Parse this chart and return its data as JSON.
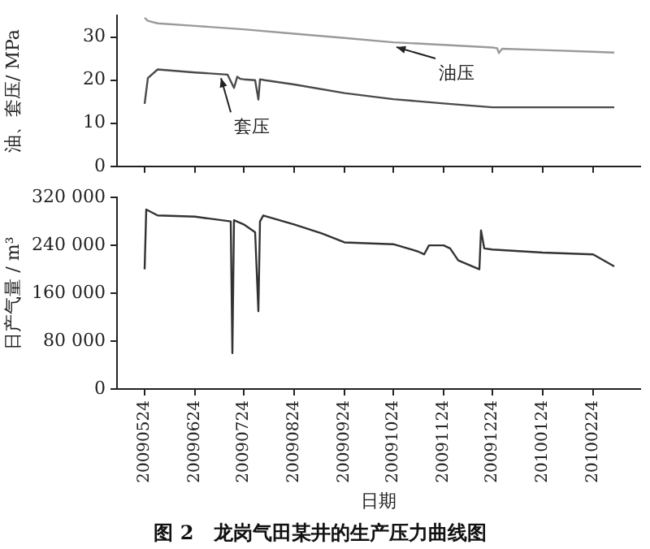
{
  "chart_data": [
    {
      "type": "line",
      "ylabel": "油、套压/ MPa",
      "xlim": [
        "2009-05-07",
        "2010-03-25"
      ],
      "ylim": [
        0,
        35
      ],
      "yticks": [
        0,
        10,
        20,
        30
      ],
      "xticks": [
        {
          "value": "2009-05-24",
          "label": null
        },
        {
          "value": "2009-06-24",
          "label": null
        },
        {
          "value": "2009-07-24",
          "label": null
        },
        {
          "value": "2009-08-24",
          "label": null
        },
        {
          "value": "2009-09-24",
          "label": null
        },
        {
          "value": "2009-10-24",
          "label": null
        },
        {
          "value": "2009-11-24",
          "label": null
        },
        {
          "value": "2009-12-24",
          "label": null
        },
        {
          "value": "2010-01-24",
          "label": null
        },
        {
          "value": "2010-02-24",
          "label": null
        }
      ],
      "tick_labels": "y",
      "grid": false,
      "legend": false,
      "marker": "none",
      "line_style": "solid",
      "series": [
        {
          "color": "#9a9a9a",
          "x": [
            "2009-05-24",
            "2009-05-26",
            "2009-06-01",
            "2009-06-24",
            "2009-07-24",
            "2009-08-24",
            "2009-09-24",
            "2009-10-24",
            "2009-11-24",
            "2009-12-24",
            "2009-12-27",
            "2009-12-28",
            "2009-12-30",
            "2010-01-24",
            "2010-02-24",
            "2010-03-09"
          ],
          "values": [
            34.5,
            33.8,
            33.2,
            32.6,
            31.8,
            30.8,
            29.8,
            28.8,
            28.2,
            27.6,
            27.4,
            26.3,
            27.3,
            27.0,
            26.6,
            26.4
          ]
        },
        {
          "color": "#4a4a4a",
          "x": [
            "2009-05-24",
            "2009-05-26",
            "2009-06-01",
            "2009-06-24",
            "2009-07-14",
            "2009-07-18",
            "2009-07-20",
            "2009-07-22",
            "2009-07-24",
            "2009-07-31",
            "2009-08-02",
            "2009-08-03",
            "2009-08-06",
            "2009-08-24",
            "2009-09-24",
            "2009-10-24",
            "2009-11-24",
            "2009-12-24",
            "2010-01-24",
            "2010-02-24",
            "2010-03-09"
          ],
          "values": [
            14.5,
            20.5,
            22.5,
            21.8,
            21.3,
            18.2,
            20.8,
            20.3,
            20.2,
            20.0,
            15.5,
            20.2,
            20.0,
            19.0,
            17.0,
            15.6,
            14.6,
            13.7,
            13.7,
            13.7,
            13.7
          ]
        }
      ],
      "annotations": [
        {
          "text": "油压",
          "x": "2009-10-24",
          "y": 28.8
        },
        {
          "text": "套压",
          "x": "2009-07-08",
          "y": 21.6
        }
      ]
    },
    {
      "type": "line",
      "title": "图 2　龙岗气田某井的生产压力曲线图",
      "xlabel": "日期",
      "ylabel": "日产气量 / m³",
      "xlim": [
        "2009-05-07",
        "2010-03-25"
      ],
      "ylim": [
        0,
        320000
      ],
      "yticks": [
        0,
        {
          "value": 80000,
          "label": "80 000"
        },
        {
          "value": 160000,
          "label": "160 000"
        },
        {
          "value": 240000,
          "label": "240 000"
        },
        {
          "value": 320000,
          "label": "320 000"
        }
      ],
      "xticks": [
        {
          "value": "2009-05-24",
          "label": "20090524"
        },
        {
          "value": "2009-06-24",
          "label": "20090624"
        },
        {
          "value": "2009-07-24",
          "label": "20090724"
        },
        {
          "value": "2009-08-24",
          "label": "20090824"
        },
        {
          "value": "2009-09-24",
          "label": "20090924"
        },
        {
          "value": "2009-10-24",
          "label": "20091024"
        },
        {
          "value": "2009-11-24",
          "label": "20091124"
        },
        {
          "value": "2009-12-24",
          "label": "20091224"
        },
        {
          "value": "2010-01-24",
          "label": "20100124"
        },
        {
          "value": "2010-02-24",
          "label": "20100224"
        }
      ],
      "grid": false,
      "legend": false,
      "marker": "none",
      "line_style": "solid",
      "series": [
        {
          "color": "#333333",
          "x": [
            "2009-05-24",
            "2009-05-25",
            "2009-06-01",
            "2009-06-24",
            "2009-07-16",
            "2009-07-17",
            "2009-07-18",
            "2009-07-24",
            "2009-07-31",
            "2009-08-02",
            "2009-08-03",
            "2009-08-05",
            "2009-08-24",
            "2009-09-10",
            "2009-09-24",
            "2009-10-24",
            "2009-11-08",
            "2009-11-12",
            "2009-11-15",
            "2009-11-24",
            "2009-11-28",
            "2009-12-03",
            "2009-12-16",
            "2009-12-17",
            "2009-12-19",
            "2009-12-24",
            "2010-01-24",
            "2010-02-24",
            "2010-03-09"
          ],
          "values": [
            200000,
            300000,
            290000,
            288000,
            280000,
            60000,
            282000,
            275000,
            262000,
            130000,
            280000,
            290000,
            275000,
            260000,
            245000,
            242000,
            230000,
            225000,
            240000,
            240000,
            235000,
            215000,
            200000,
            265000,
            235000,
            233000,
            228000,
            225000,
            205000
          ]
        }
      ]
    }
  ]
}
